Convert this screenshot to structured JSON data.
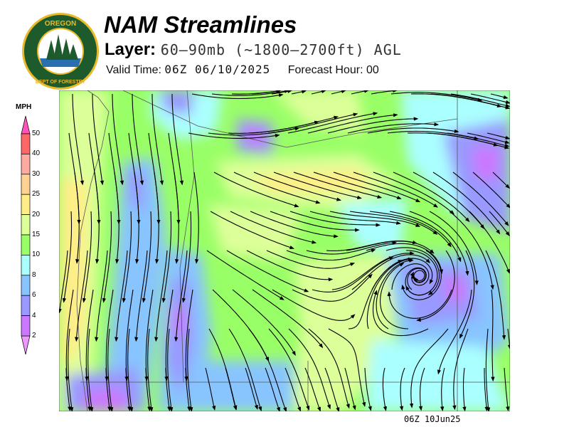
{
  "logo": {
    "top_text": "OREGON",
    "bottom_text": "DEPARTMENT OF FORESTRY"
  },
  "header": {
    "title": "NAM Streamlines",
    "layer_label": "Layer:",
    "layer_value": "60–90mb (~1800–2700ft) AGL",
    "valid_label": "Valid Time:",
    "valid_value": "06Z 06/10/2025",
    "forecast_label": "Forecast Hour:",
    "forecast_value": "00"
  },
  "legend": {
    "unit": "MPH",
    "bins": [
      {
        "label": "50",
        "color": "#ff6666"
      },
      {
        "label": "40",
        "color": "#ffaaa0"
      },
      {
        "label": "30",
        "color": "#ffd294"
      },
      {
        "label": "25",
        "color": "#ffee88"
      },
      {
        "label": "20",
        "color": "#ddff99"
      },
      {
        "label": "15",
        "color": "#99ff66"
      },
      {
        "label": "10",
        "color": "#aaffff"
      },
      {
        "label": "8",
        "color": "#88c4ff"
      },
      {
        "label": "6",
        "color": "#9999ff"
      },
      {
        "label": "4",
        "color": "#cc77ff"
      },
      {
        "label": "2",
        "color": null
      }
    ],
    "over_color": "#ff55bb",
    "under_color": "#ee99ff"
  },
  "footer": {
    "time": "06Z 10Jun25"
  }
}
